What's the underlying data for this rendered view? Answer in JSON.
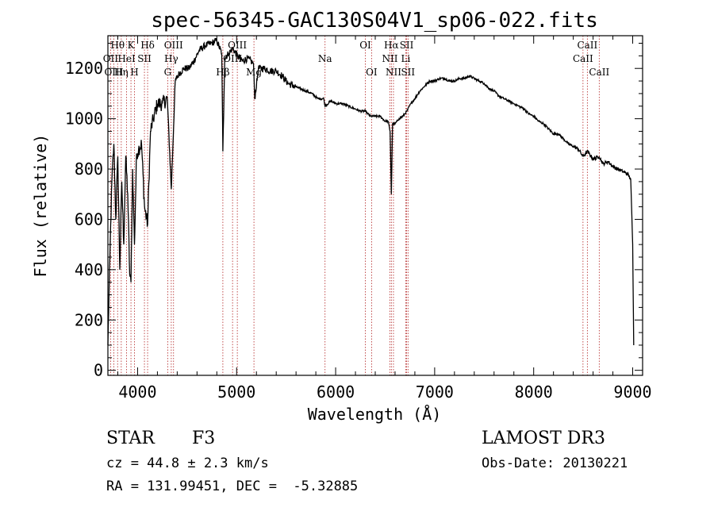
{
  "chart_data": {
    "type": "line",
    "title": "spec-56345-GAC130S04V1_sp06-022.fits",
    "xlabel": "Wavelength (Å)",
    "ylabel": "Flux (relative)",
    "xlim": [
      3700,
      9100
    ],
    "ylim": [
      -20,
      1330
    ],
    "xticks": [
      4000,
      5000,
      6000,
      7000,
      8000,
      9000
    ],
    "yticks": [
      0,
      200,
      400,
      600,
      800,
      1000,
      1200
    ],
    "series": [
      {
        "name": "flux",
        "x": [
          3700,
          3720,
          3740,
          3760,
          3780,
          3800,
          3820,
          3840,
          3860,
          3880,
          3900,
          3920,
          3933,
          3950,
          3968,
          3990,
          4010,
          4040,
          4070,
          4101,
          4130,
          4160,
          4200,
          4250,
          4300,
          4340,
          4380,
          4420,
          4470,
          4520,
          4570,
          4620,
          4680,
          4740,
          4800,
          4850,
          4861,
          4880,
          4920,
          4960,
          5010,
          5060,
          5110,
          5170,
          5183,
          5220,
          5280,
          5340,
          5400,
          5460,
          5520,
          5580,
          5640,
          5700,
          5760,
          5820,
          5880,
          5893,
          5950,
          6010,
          6070,
          6130,
          6190,
          6250,
          6300,
          6350,
          6400,
          6450,
          6500,
          6530,
          6550,
          6563,
          6575,
          6600,
          6640,
          6680,
          6720,
          6760,
          6800,
          6850,
          6900,
          6950,
          7000,
          7050,
          7100,
          7150,
          7200,
          7250,
          7300,
          7350,
          7400,
          7450,
          7500,
          7550,
          7600,
          7650,
          7700,
          7750,
          7800,
          7850,
          7900,
          7950,
          8000,
          8050,
          8100,
          8150,
          8200,
          8250,
          8300,
          8350,
          8400,
          8450,
          8498,
          8542,
          8600,
          8662,
          8700,
          8750,
          8800,
          8850,
          8900,
          8950,
          8980,
          9000,
          9010
        ],
        "y": [
          100,
          450,
          750,
          900,
          600,
          850,
          400,
          750,
          500,
          850,
          700,
          380,
          350,
          800,
          500,
          860,
          880,
          900,
          650,
          580,
          950,
          1000,
          1060,
          1060,
          1080,
          720,
          1150,
          1180,
          1200,
          1200,
          1230,
          1270,
          1290,
          1300,
          1310,
          1260,
          870,
          1240,
          1260,
          1280,
          1250,
          1230,
          1240,
          1220,
          1080,
          1200,
          1200,
          1190,
          1190,
          1170,
          1140,
          1130,
          1120,
          1110,
          1100,
          1080,
          1080,
          1050,
          1070,
          1060,
          1060,
          1050,
          1040,
          1030,
          1030,
          1010,
          1010,
          1010,
          990,
          990,
          950,
          700,
          980,
          980,
          1000,
          1010,
          1030,
          1060,
          1080,
          1110,
          1130,
          1150,
          1150,
          1160,
          1160,
          1150,
          1150,
          1160,
          1160,
          1170,
          1160,
          1150,
          1140,
          1120,
          1110,
          1090,
          1080,
          1070,
          1060,
          1050,
          1040,
          1020,
          1010,
          990,
          980,
          960,
          940,
          940,
          920,
          900,
          890,
          880,
          850,
          870,
          840,
          850,
          820,
          830,
          810,
          800,
          790,
          780,
          760,
          500,
          100
        ]
      }
    ],
    "line_labels": [
      {
        "text": "Hθ",
        "x": 3798,
        "row": 1
      },
      {
        "text": "K",
        "x": 3933,
        "row": 1
      },
      {
        "text": "Hδ",
        "x": 4101,
        "row": 1
      },
      {
        "text": "OIII",
        "x": 4363,
        "row": 1
      },
      {
        "text": "OIII",
        "x": 5007,
        "row": 1
      },
      {
        "text": "OI",
        "x": 6300,
        "row": 1
      },
      {
        "text": "Hα",
        "x": 6563,
        "row": 1
      },
      {
        "text": "SII",
        "x": 6717,
        "row": 1
      },
      {
        "text": "CaII",
        "x": 8542,
        "row": 1
      },
      {
        "text": "OII",
        "x": 3727,
        "row": 2
      },
      {
        "text": "HeI",
        "x": 3889,
        "row": 2
      },
      {
        "text": "SII",
        "x": 4069,
        "row": 2
      },
      {
        "text": "Hγ",
        "x": 4340,
        "row": 2
      },
      {
        "text": "OIII",
        "x": 4959,
        "row": 2
      },
      {
        "text": "Na",
        "x": 5893,
        "row": 2
      },
      {
        "text": "NII",
        "x": 6548,
        "row": 2
      },
      {
        "text": "Li",
        "x": 6708,
        "row": 2
      },
      {
        "text": "CaII",
        "x": 8498,
        "row": 2
      },
      {
        "text": "OIII",
        "x": 3760,
        "row": 3
      },
      {
        "text": "Hη",
        "x": 3835,
        "row": 3
      },
      {
        "text": "H",
        "x": 3968,
        "row": 3
      },
      {
        "text": "G",
        "x": 4304,
        "row": 3
      },
      {
        "text": "Hβ",
        "x": 4861,
        "row": 3
      },
      {
        "text": "Mg",
        "x": 5175,
        "row": 3
      },
      {
        "text": "OI",
        "x": 6363,
        "row": 3
      },
      {
        "text": "NII",
        "x": 6584,
        "row": 3
      },
      {
        "text": "SII",
        "x": 6731,
        "row": 3
      },
      {
        "text": "CaII",
        "x": 8662,
        "row": 3
      }
    ],
    "reference_lines": [
      3727,
      3760,
      3798,
      3835,
      3889,
      3933,
      3968,
      4069,
      4101,
      4304,
      4340,
      4363,
      4861,
      4959,
      5007,
      5175,
      5893,
      6300,
      6363,
      6548,
      6563,
      6584,
      6708,
      6717,
      6731,
      8498,
      8542,
      8662
    ]
  },
  "info": {
    "object_class": "STAR",
    "subclass": "F3",
    "redshift": "cz = 44.8 ± 2.3 km/s",
    "coords": "RA = 131.99451, DEC =  -5.32885",
    "survey": "LAMOST DR3",
    "obs_date": "Obs-Date: 20130221"
  }
}
